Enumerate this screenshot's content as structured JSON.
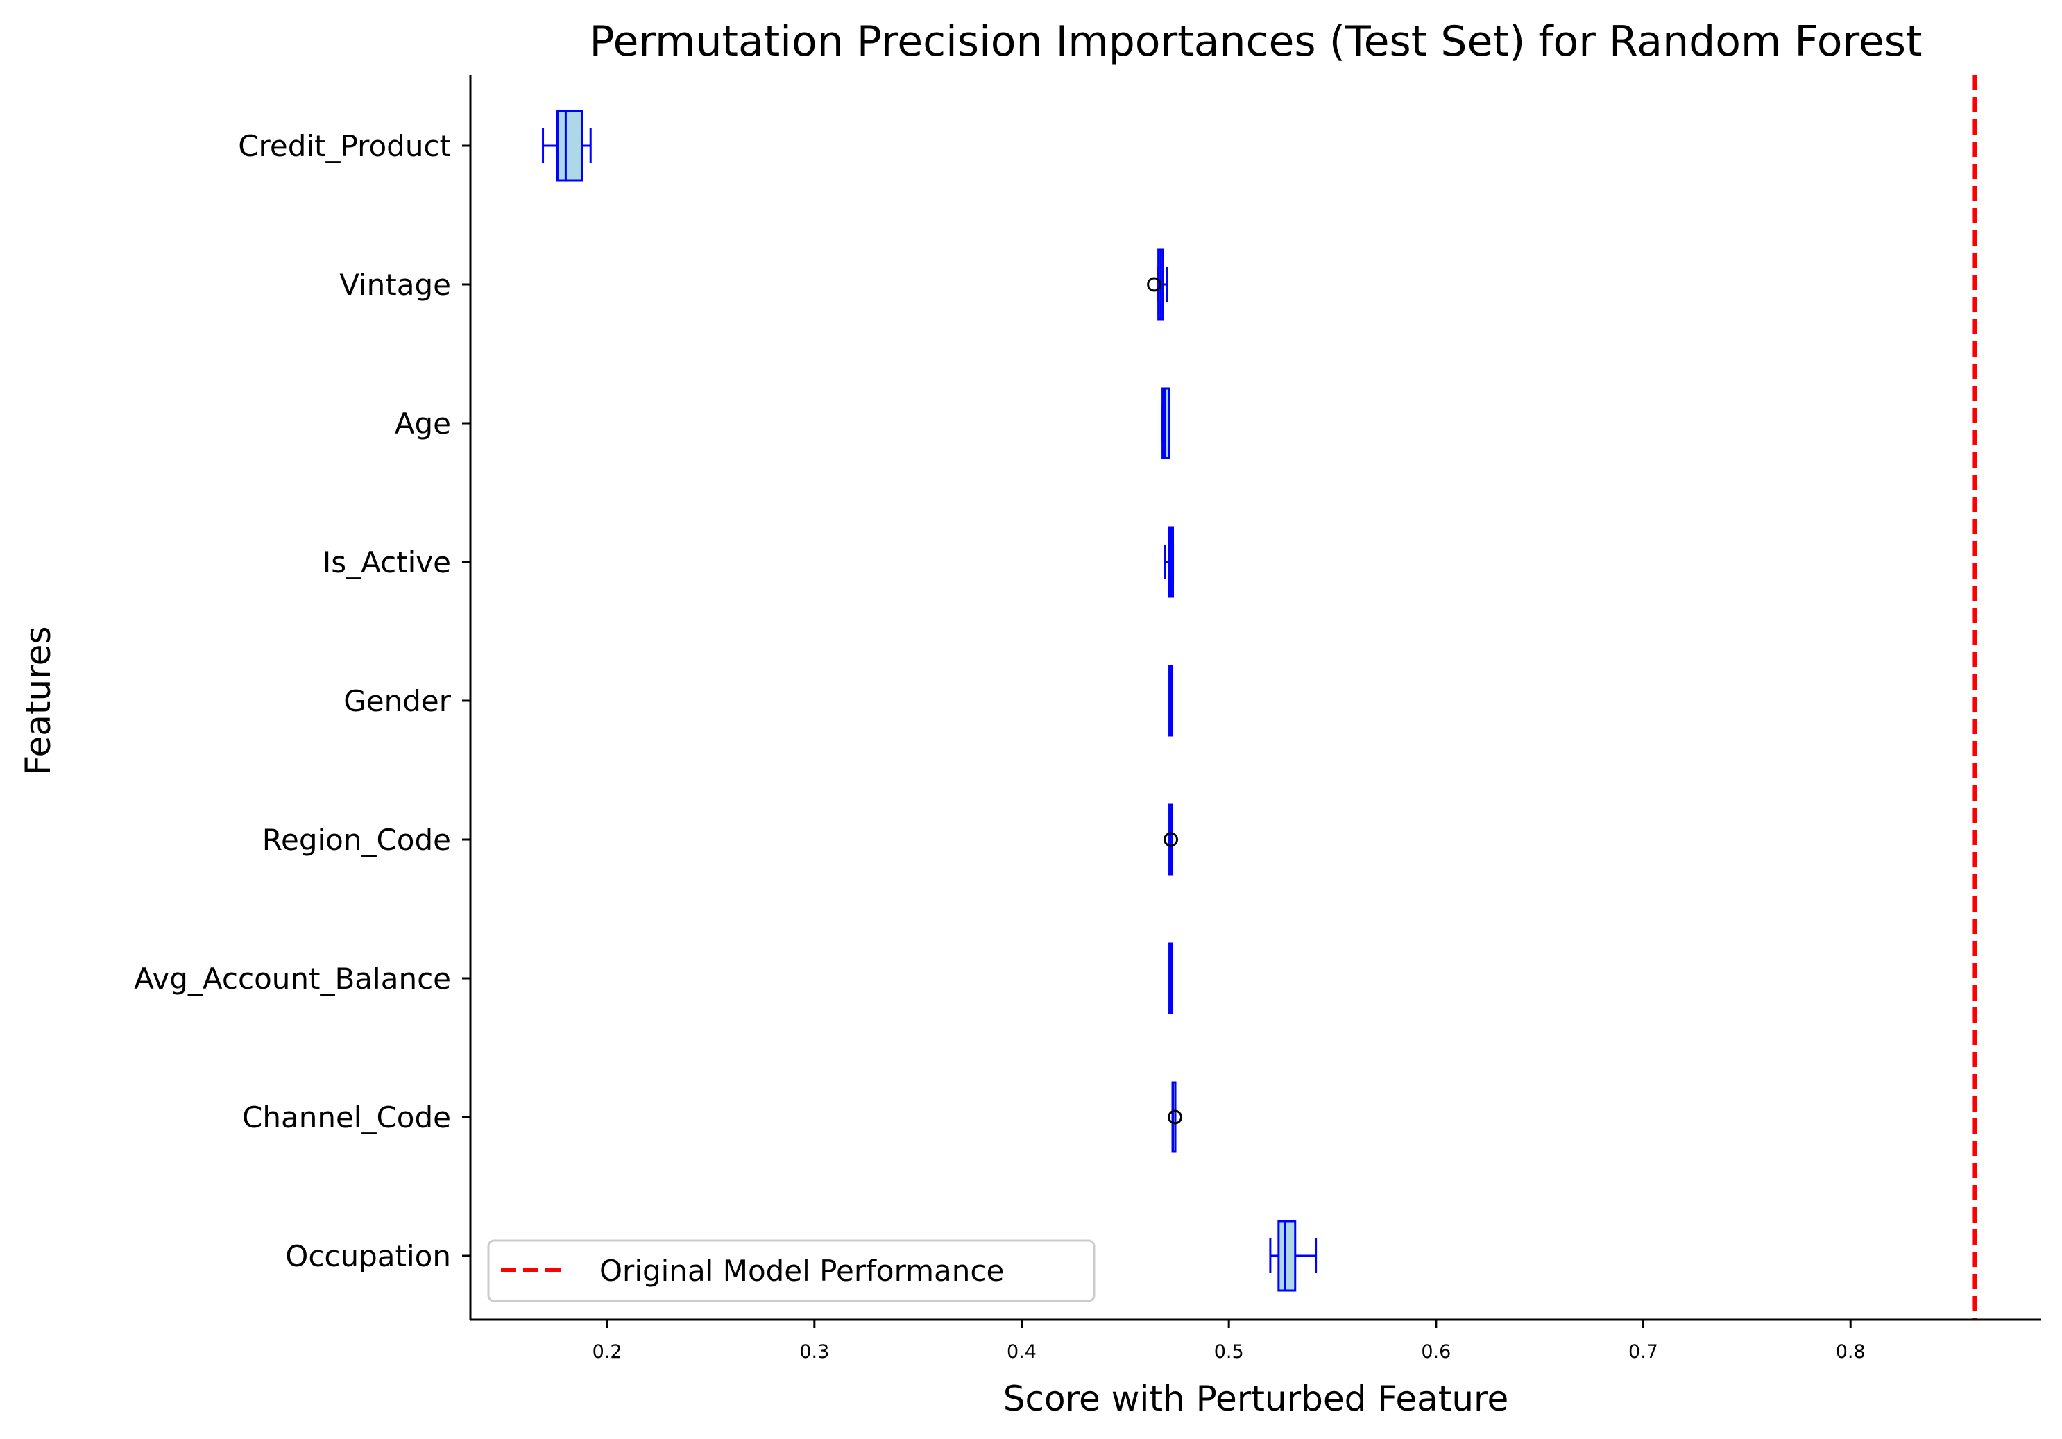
{
  "chart_data": {
    "type": "boxplot",
    "orientation": "horizontal",
    "title": "Permutation Precision Importances (Test Set) for Random Forest",
    "xlabel": "Score with Perturbed Feature",
    "ylabel": "Features",
    "xlim": [
      0.134,
      0.892
    ],
    "xticks": [
      0.2,
      0.3,
      0.4,
      0.5,
      0.6,
      0.7,
      0.8
    ],
    "xtick_labels": [
      "0.2",
      "0.3",
      "0.4",
      "0.5",
      "0.6",
      "0.7",
      "0.8"
    ],
    "grid": false,
    "legend": {
      "placement": "lower-left",
      "entries": [
        "Original Model Performance"
      ]
    },
    "reference_line": {
      "name": "Original Model Performance",
      "x": 0.86,
      "style": "dashed",
      "color": "#ff0000"
    },
    "colors": {
      "box_edge": "#0000ff",
      "box_fill": "#add8e6",
      "outlier": "#000000"
    },
    "categories": [
      "Credit_Product",
      "Vintage",
      "Age",
      "Is_Active",
      "Gender",
      "Region_Code",
      "Avg_Account_Balance",
      "Channel_Code",
      "Occupation"
    ],
    "series": [
      {
        "category": "Credit_Product",
        "whislo": 0.169,
        "q1": 0.176,
        "med": 0.18,
        "q3": 0.188,
        "whishi": 0.192,
        "fliers": []
      },
      {
        "category": "Vintage",
        "whislo": 0.466,
        "q1": 0.466,
        "med": 0.467,
        "q3": 0.468,
        "whishi": 0.47,
        "fliers": [
          0.464
        ]
      },
      {
        "category": "Age",
        "whislo": 0.468,
        "q1": 0.468,
        "med": 0.469,
        "q3": 0.471,
        "whishi": 0.471,
        "fliers": []
      },
      {
        "category": "Is_Active",
        "whislo": 0.469,
        "q1": 0.471,
        "med": 0.472,
        "q3": 0.473,
        "whishi": 0.473,
        "fliers": []
      },
      {
        "category": "Gender",
        "whislo": 0.472,
        "q1": 0.472,
        "med": 0.472,
        "q3": 0.472,
        "whishi": 0.472,
        "fliers": []
      },
      {
        "category": "Region_Code",
        "whislo": 0.472,
        "q1": 0.472,
        "med": 0.472,
        "q3": 0.472,
        "whishi": 0.472,
        "fliers": [
          0.472
        ]
      },
      {
        "category": "Avg_Account_Balance",
        "whislo": 0.472,
        "q1": 0.472,
        "med": 0.472,
        "q3": 0.472,
        "whishi": 0.472,
        "fliers": []
      },
      {
        "category": "Channel_Code",
        "whislo": 0.473,
        "q1": 0.473,
        "med": 0.473,
        "q3": 0.474,
        "whishi": 0.474,
        "fliers": [
          0.474
        ]
      },
      {
        "category": "Occupation",
        "whislo": 0.52,
        "q1": 0.524,
        "med": 0.527,
        "q3": 0.532,
        "whishi": 0.542,
        "fliers": []
      }
    ]
  }
}
